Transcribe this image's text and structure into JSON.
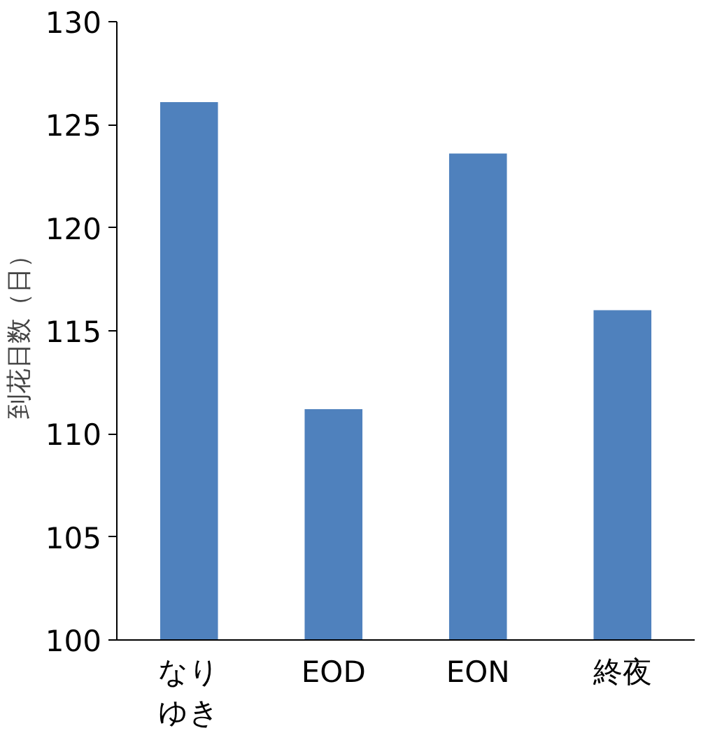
{
  "chart_data": {
    "type": "bar",
    "ylabel": "到花日数（日）",
    "categories": [
      "なりゆき",
      "EOD",
      "EON",
      "終夜"
    ],
    "values": [
      126.1,
      111.2,
      123.6,
      116.0
    ],
    "color": "#4f81bd",
    "ylim": [
      100,
      130
    ],
    "yticks": [
      100,
      105,
      110,
      115,
      120,
      125,
      130
    ],
    "grid": false
  }
}
